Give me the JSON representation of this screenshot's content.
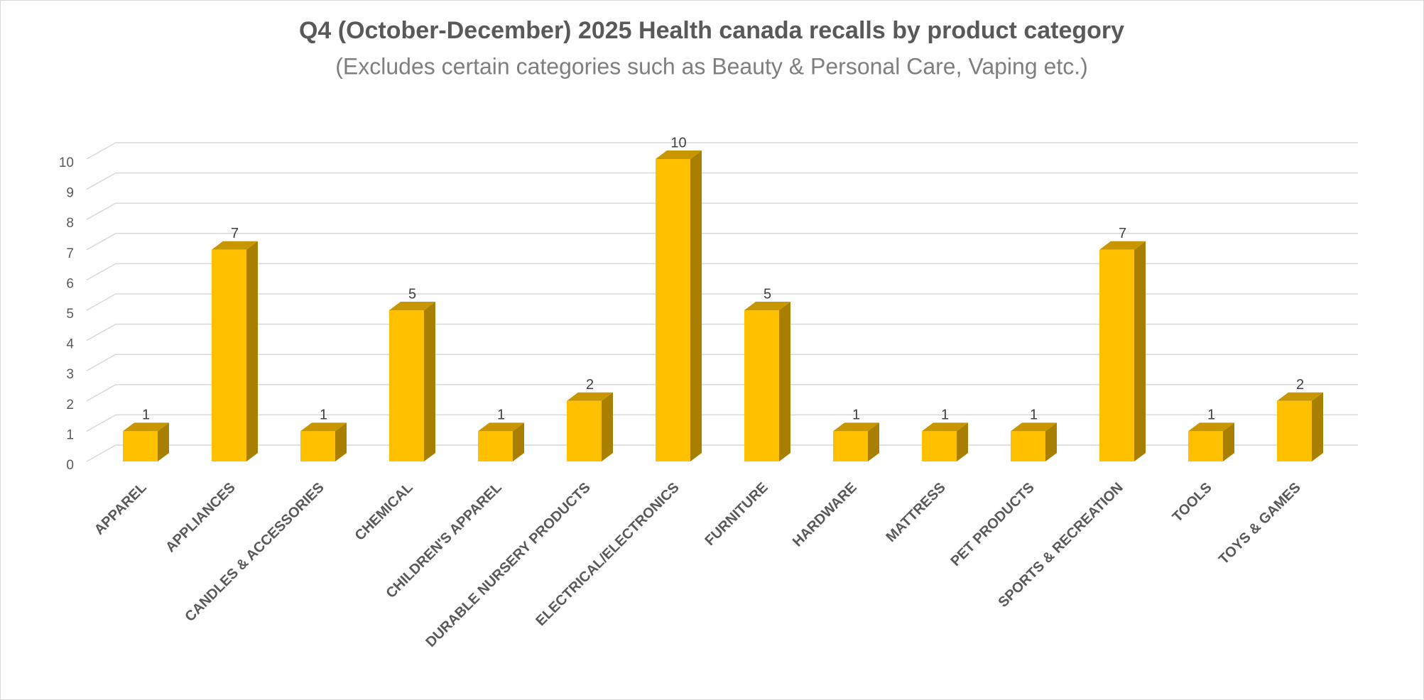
{
  "chart_data": {
    "type": "bar3d",
    "title": "Q4 (October-December) 2025 Health canada recalls by product category",
    "subtitle": "(Excludes certain categories such as Beauty & Personal Care, Vaping etc.)",
    "categories": [
      "APPAREL",
      "APPLIANCES",
      "CANDLES & ACCESSORIES",
      "CHEMICAL",
      "CHILDREN'S APPAREL",
      "DURABLE NURSERY PRODUCTS",
      "ELECTRICAL/ELECTRONICS",
      "FURNITURE",
      "HARDWARE",
      "MATTRESS",
      "PET PRODUCTS",
      "SPORTS & RECREATION",
      "TOOLS",
      "TOYS & GAMES"
    ],
    "values": [
      1,
      7,
      1,
      5,
      1,
      2,
      10,
      5,
      1,
      1,
      1,
      7,
      1,
      2
    ],
    "color": "#ffc000",
    "ylim": [
      0,
      10
    ],
    "yticks": [
      0,
      1,
      2,
      3,
      4,
      5,
      6,
      7,
      8,
      9,
      10
    ],
    "grid": true
  }
}
